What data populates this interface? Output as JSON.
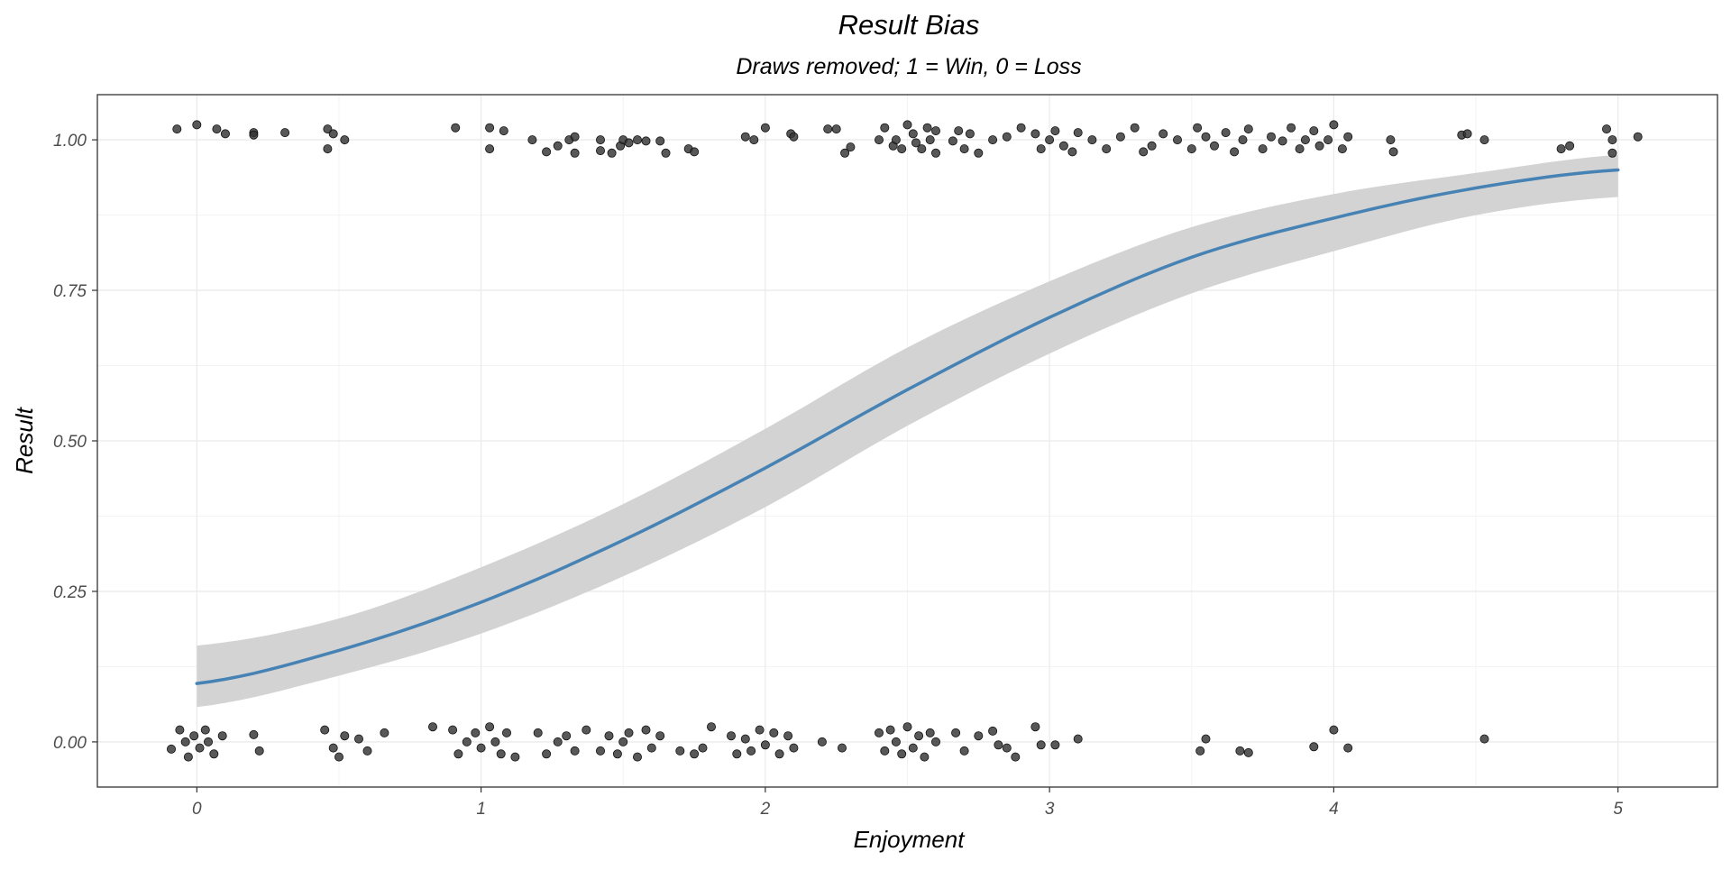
{
  "chart_data": {
    "type": "scatter",
    "title": "Result Bias",
    "subtitle": "Draws removed; 1 = Win, 0 = Loss",
    "xlabel": "Enjoyment",
    "ylabel": "Result",
    "xlim": [
      -0.35,
      5.35
    ],
    "ylim": [
      -0.075,
      1.075
    ],
    "x_ticks": [
      0,
      1,
      2,
      3,
      4,
      5
    ],
    "x_tick_labels": [
      "0",
      "1",
      "2",
      "3",
      "4",
      "5"
    ],
    "y_ticks": [
      0,
      0.25,
      0.5,
      0.75,
      1
    ],
    "y_tick_labels": [
      "0.00",
      "0.25",
      "0.50",
      "0.75",
      "1.00"
    ],
    "grid": true,
    "colors": {
      "points": "#333333",
      "fit_line": "#4682b4",
      "confidence_band": "#d3d3d3",
      "grid_major": "#ebebeb",
      "grid_minor": "#f3f3f3",
      "panel_border": "#333333"
    },
    "series": [
      {
        "type": "scatter",
        "note_jitter": "points jittered horizontally and vertically",
        "points": [
          [
            -0.07,
            1.018
          ],
          [
            0.0,
            1.025
          ],
          [
            0.07,
            1.018
          ],
          [
            0.1,
            1.01
          ],
          [
            0.2,
            1.012
          ],
          [
            0.2,
            1.008
          ],
          [
            0.31,
            1.012
          ],
          [
            0.46,
            1.018
          ],
          [
            0.48,
            1.01
          ],
          [
            0.46,
            0.985
          ],
          [
            0.52,
            1.0
          ],
          [
            0.91,
            1.02
          ],
          [
            1.03,
            1.02
          ],
          [
            1.08,
            1.015
          ],
          [
            1.03,
            0.985
          ],
          [
            1.18,
            1.0
          ],
          [
            1.23,
            0.98
          ],
          [
            1.27,
            0.99
          ],
          [
            1.31,
            1.0
          ],
          [
            1.33,
            1.005
          ],
          [
            1.33,
            0.978
          ],
          [
            1.42,
            1.0
          ],
          [
            1.42,
            0.982
          ],
          [
            1.46,
            0.978
          ],
          [
            1.49,
            0.99
          ],
          [
            1.5,
            1.0
          ],
          [
            1.52,
            0.995
          ],
          [
            1.55,
            1.0
          ],
          [
            1.58,
            0.998
          ],
          [
            1.63,
            0.998
          ],
          [
            1.65,
            0.978
          ],
          [
            1.73,
            0.985
          ],
          [
            1.75,
            0.98
          ],
          [
            1.93,
            1.005
          ],
          [
            1.96,
            1.0
          ],
          [
            2.0,
            1.02
          ],
          [
            2.09,
            1.01
          ],
          [
            2.1,
            1.005
          ],
          [
            2.22,
            1.018
          ],
          [
            2.25,
            1.018
          ],
          [
            2.28,
            0.978
          ],
          [
            2.3,
            0.988
          ],
          [
            2.4,
            1.0
          ],
          [
            2.42,
            1.02
          ],
          [
            2.45,
            0.99
          ],
          [
            2.46,
            1.0
          ],
          [
            2.48,
            0.985
          ],
          [
            2.5,
            1.025
          ],
          [
            2.52,
            1.01
          ],
          [
            2.53,
            0.995
          ],
          [
            2.55,
            0.985
          ],
          [
            2.57,
            1.02
          ],
          [
            2.58,
            1.0
          ],
          [
            2.6,
            0.978
          ],
          [
            2.6,
            1.015
          ],
          [
            2.66,
            0.998
          ],
          [
            2.68,
            1.015
          ],
          [
            2.7,
            0.985
          ],
          [
            2.72,
            1.01
          ],
          [
            2.75,
            0.978
          ],
          [
            2.8,
            1.0
          ],
          [
            2.85,
            1.005
          ],
          [
            2.9,
            1.02
          ],
          [
            2.95,
            1.01
          ],
          [
            2.97,
            0.985
          ],
          [
            3.0,
            1.0
          ],
          [
            3.02,
            1.015
          ],
          [
            3.05,
            0.99
          ],
          [
            3.08,
            0.98
          ],
          [
            3.1,
            1.012
          ],
          [
            3.15,
            1.0
          ],
          [
            3.2,
            0.985
          ],
          [
            3.25,
            1.005
          ],
          [
            3.3,
            1.02
          ],
          [
            3.33,
            0.98
          ],
          [
            3.36,
            0.99
          ],
          [
            3.4,
            1.01
          ],
          [
            3.45,
            1.0
          ],
          [
            3.5,
            0.985
          ],
          [
            3.52,
            1.02
          ],
          [
            3.55,
            1.005
          ],
          [
            3.58,
            0.99
          ],
          [
            3.62,
            1.012
          ],
          [
            3.65,
            0.98
          ],
          [
            3.68,
            1.0
          ],
          [
            3.7,
            1.018
          ],
          [
            3.75,
            0.985
          ],
          [
            3.78,
            1.005
          ],
          [
            3.82,
            0.998
          ],
          [
            3.85,
            1.02
          ],
          [
            3.88,
            0.985
          ],
          [
            3.9,
            1.0
          ],
          [
            3.93,
            1.015
          ],
          [
            3.95,
            0.99
          ],
          [
            3.98,
            1.0
          ],
          [
            4.0,
            1.025
          ],
          [
            4.03,
            0.985
          ],
          [
            4.05,
            1.005
          ],
          [
            4.2,
            1.0
          ],
          [
            4.21,
            0.98
          ],
          [
            4.45,
            1.008
          ],
          [
            4.47,
            1.01
          ],
          [
            4.53,
            1.0
          ],
          [
            4.8,
            0.985
          ],
          [
            4.83,
            0.99
          ],
          [
            4.96,
            1.018
          ],
          [
            4.98,
            1.0
          ],
          [
            4.98,
            0.978
          ],
          [
            5.07,
            1.005
          ],
          [
            -0.09,
            -0.012
          ],
          [
            -0.06,
            0.02
          ],
          [
            -0.04,
            0.0
          ],
          [
            -0.03,
            -0.025
          ],
          [
            -0.01,
            0.01
          ],
          [
            0.01,
            -0.01
          ],
          [
            0.03,
            0.02
          ],
          [
            0.04,
            0.0
          ],
          [
            0.06,
            -0.02
          ],
          [
            0.09,
            0.01
          ],
          [
            0.2,
            0.012
          ],
          [
            0.22,
            -0.015
          ],
          [
            0.45,
            0.02
          ],
          [
            0.48,
            -0.01
          ],
          [
            0.5,
            -0.025
          ],
          [
            0.52,
            0.01
          ],
          [
            0.57,
            0.005
          ],
          [
            0.6,
            -0.015
          ],
          [
            0.66,
            0.015
          ],
          [
            0.83,
            0.025
          ],
          [
            0.9,
            0.02
          ],
          [
            0.92,
            -0.02
          ],
          [
            0.95,
            0.0
          ],
          [
            0.98,
            0.015
          ],
          [
            1.0,
            -0.01
          ],
          [
            1.03,
            0.025
          ],
          [
            1.05,
            0.0
          ],
          [
            1.07,
            -0.02
          ],
          [
            1.09,
            0.015
          ],
          [
            1.12,
            -0.025
          ],
          [
            1.2,
            0.015
          ],
          [
            1.23,
            -0.02
          ],
          [
            1.27,
            0.0
          ],
          [
            1.3,
            0.01
          ],
          [
            1.33,
            -0.015
          ],
          [
            1.37,
            0.02
          ],
          [
            1.42,
            -0.015
          ],
          [
            1.45,
            0.01
          ],
          [
            1.48,
            -0.02
          ],
          [
            1.5,
            0.0
          ],
          [
            1.52,
            0.015
          ],
          [
            1.55,
            -0.025
          ],
          [
            1.58,
            0.02
          ],
          [
            1.6,
            -0.01
          ],
          [
            1.63,
            0.01
          ],
          [
            1.7,
            -0.015
          ],
          [
            1.75,
            -0.02
          ],
          [
            1.78,
            -0.01
          ],
          [
            1.81,
            0.025
          ],
          [
            1.88,
            0.01
          ],
          [
            1.9,
            -0.02
          ],
          [
            1.93,
            0.005
          ],
          [
            1.95,
            -0.015
          ],
          [
            1.98,
            0.02
          ],
          [
            2.0,
            -0.005
          ],
          [
            2.03,
            0.015
          ],
          [
            2.05,
            -0.02
          ],
          [
            2.08,
            0.01
          ],
          [
            2.1,
            -0.01
          ],
          [
            2.2,
            0.0
          ],
          [
            2.27,
            -0.01
          ],
          [
            2.4,
            0.015
          ],
          [
            2.42,
            -0.015
          ],
          [
            2.44,
            0.02
          ],
          [
            2.46,
            0.0
          ],
          [
            2.48,
            -0.02
          ],
          [
            2.5,
            0.025
          ],
          [
            2.52,
            -0.01
          ],
          [
            2.54,
            0.01
          ],
          [
            2.56,
            -0.025
          ],
          [
            2.58,
            0.015
          ],
          [
            2.6,
            0.0
          ],
          [
            2.67,
            0.015
          ],
          [
            2.7,
            -0.015
          ],
          [
            2.75,
            0.01
          ],
          [
            2.8,
            0.018
          ],
          [
            2.82,
            -0.005
          ],
          [
            2.85,
            -0.01
          ],
          [
            2.88,
            -0.025
          ],
          [
            2.95,
            0.025
          ],
          [
            2.97,
            -0.005
          ],
          [
            3.02,
            -0.005
          ],
          [
            3.1,
            0.005
          ],
          [
            3.53,
            -0.015
          ],
          [
            3.55,
            0.005
          ],
          [
            3.67,
            -0.015
          ],
          [
            3.7,
            -0.018
          ],
          [
            3.93,
            -0.008
          ],
          [
            4.0,
            0.02
          ],
          [
            4.05,
            -0.01
          ],
          [
            4.53,
            0.005
          ]
        ]
      },
      {
        "type": "line",
        "note": "logistic fit with confidence band",
        "x": [
          0,
          0.5,
          1,
          1.5,
          2,
          2.5,
          3,
          3.5,
          4,
          4.5,
          5
        ],
        "y": [
          0.097,
          0.152,
          0.232,
          0.335,
          0.455,
          0.585,
          0.705,
          0.805,
          0.87,
          0.92,
          0.95
        ],
        "lower": [
          0.058,
          0.11,
          0.18,
          0.275,
          0.39,
          0.525,
          0.645,
          0.745,
          0.815,
          0.875,
          0.905
        ],
        "upper": [
          0.16,
          0.205,
          0.29,
          0.395,
          0.52,
          0.655,
          0.765,
          0.855,
          0.91,
          0.945,
          0.975
        ]
      }
    ]
  }
}
